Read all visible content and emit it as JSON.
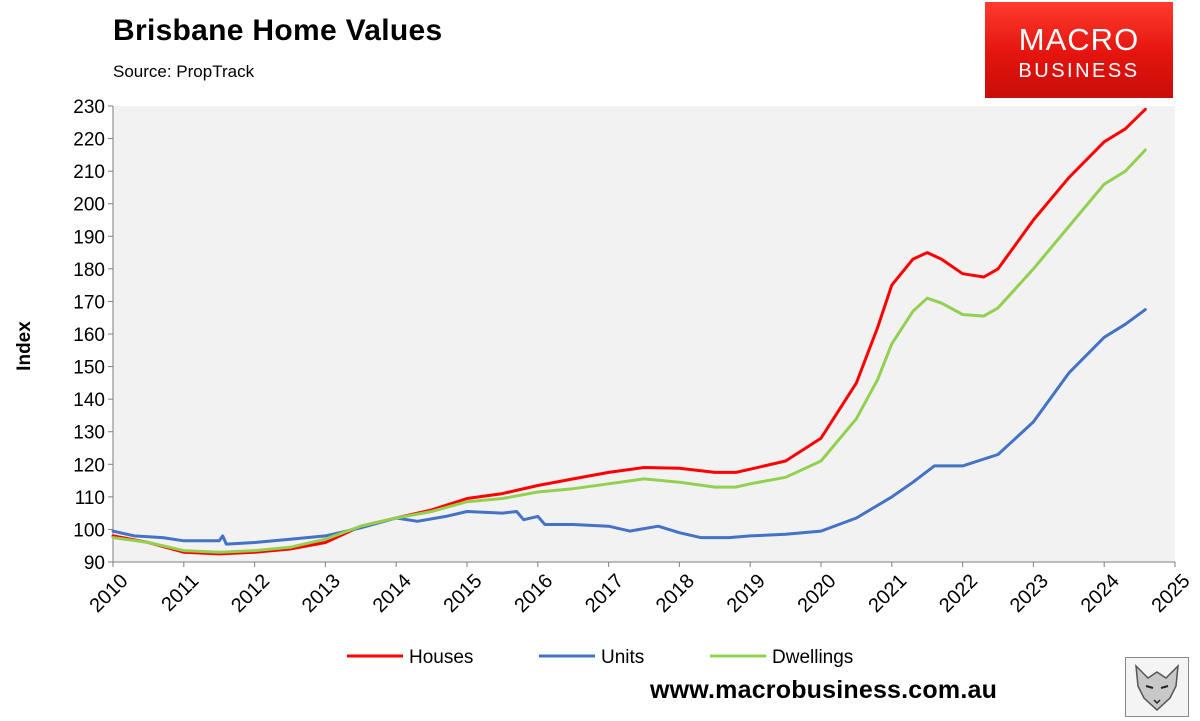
{
  "header": {
    "title": "Brisbane Home Values",
    "source": "Source: PropTrack"
  },
  "logo": {
    "line1": "MACRO",
    "line2": "BUSINESS"
  },
  "footer": {
    "url": "www.macrobusiness.com.au"
  },
  "colors": {
    "houses": "#ff0000",
    "units": "#4472c4",
    "dwellings": "#92d050",
    "plot_bg": "#f2f2f2"
  },
  "chart_data": {
    "type": "line",
    "title": "Brisbane Home Values",
    "subtitle": "Source: PropTrack",
    "ylabel": "Index",
    "xlabel": "",
    "ylim": [
      90,
      230
    ],
    "yticks": [
      "90",
      "100",
      "110",
      "120",
      "130",
      "140",
      "150",
      "160",
      "170",
      "180",
      "190",
      "200",
      "210",
      "220",
      "230"
    ],
    "xlim": [
      2010,
      2025
    ],
    "xticks": [
      "2010",
      "2011",
      "2012",
      "2013",
      "2014",
      "2015",
      "2016",
      "2017",
      "2018",
      "2019",
      "2020",
      "2021",
      "2022",
      "2023",
      "2024",
      "2025"
    ],
    "grid": false,
    "legend": "bottom-center",
    "series": [
      {
        "name": "Houses",
        "color": "#ff0000",
        "x": [
          2010,
          2010.5,
          2011,
          2011.5,
          2012,
          2012.5,
          2013,
          2013.5,
          2014,
          2014.5,
          2015,
          2015.5,
          2016,
          2016.5,
          2017,
          2017.5,
          2018,
          2018.5,
          2018.8,
          2019,
          2019.5,
          2020,
          2020.5,
          2020.8,
          2021,
          2021.3,
          2021.5,
          2021.7,
          2022,
          2022.3,
          2022.5,
          2023,
          2023.5,
          2024,
          2024.3,
          2024.58
        ],
        "y": [
          98,
          96,
          93,
          92.5,
          93,
          94,
          96,
          101,
          103.5,
          106,
          109.5,
          111,
          113.5,
          115.5,
          117.5,
          119,
          118.8,
          117.5,
          117.5,
          118.5,
          121,
          128,
          145,
          162,
          175,
          183,
          185,
          183,
          178.5,
          177.5,
          180,
          195,
          208,
          219,
          223,
          229
        ]
      },
      {
        "name": "Units",
        "color": "#4472c4",
        "x": [
          2010,
          2010.3,
          2010.7,
          2011,
          2011.5,
          2011.55,
          2011.6,
          2012,
          2012.5,
          2013,
          2013.5,
          2014,
          2014.3,
          2014.7,
          2015,
          2015.5,
          2015.7,
          2015.8,
          2016,
          2016.1,
          2016.5,
          2017,
          2017.3,
          2017.7,
          2018,
          2018.3,
          2018.7,
          2019,
          2019.5,
          2020,
          2020.5,
          2021,
          2021.3,
          2021.6,
          2022,
          2022.5,
          2023,
          2023.5,
          2024,
          2024.3,
          2024.58
        ],
        "y": [
          99.5,
          98,
          97.5,
          96.5,
          96.5,
          98,
          95.5,
          96,
          97,
          98,
          100.5,
          103.5,
          102.5,
          104,
          105.5,
          105,
          105.5,
          103,
          104,
          101.5,
          101.5,
          101,
          99.5,
          101,
          99,
          97.5,
          97.5,
          98,
          98.5,
          99.5,
          103.5,
          110,
          114.5,
          119.5,
          119.5,
          123,
          133,
          148,
          159,
          163,
          167.5
        ]
      },
      {
        "name": "Dwellings",
        "color": "#92d050",
        "x": [
          2010,
          2010.5,
          2011,
          2011.5,
          2012,
          2012.5,
          2013,
          2013.5,
          2014,
          2014.5,
          2015,
          2015.5,
          2016,
          2016.5,
          2017,
          2017.5,
          2018,
          2018.5,
          2018.8,
          2019,
          2019.5,
          2020,
          2020.5,
          2020.8,
          2021,
          2021.3,
          2021.5,
          2021.7,
          2022,
          2022.3,
          2022.5,
          2023,
          2023.5,
          2024,
          2024.3,
          2024.58
        ],
        "y": [
          97.5,
          96,
          93.5,
          93,
          93.5,
          94.5,
          97,
          101,
          103.5,
          105.5,
          108.5,
          109.5,
          111.5,
          112.5,
          114,
          115.5,
          114.5,
          113,
          113,
          114,
          116,
          121,
          134,
          146,
          157,
          167,
          171,
          169.5,
          166,
          165.5,
          168,
          180,
          193,
          206,
          210,
          216.5
        ]
      }
    ]
  }
}
